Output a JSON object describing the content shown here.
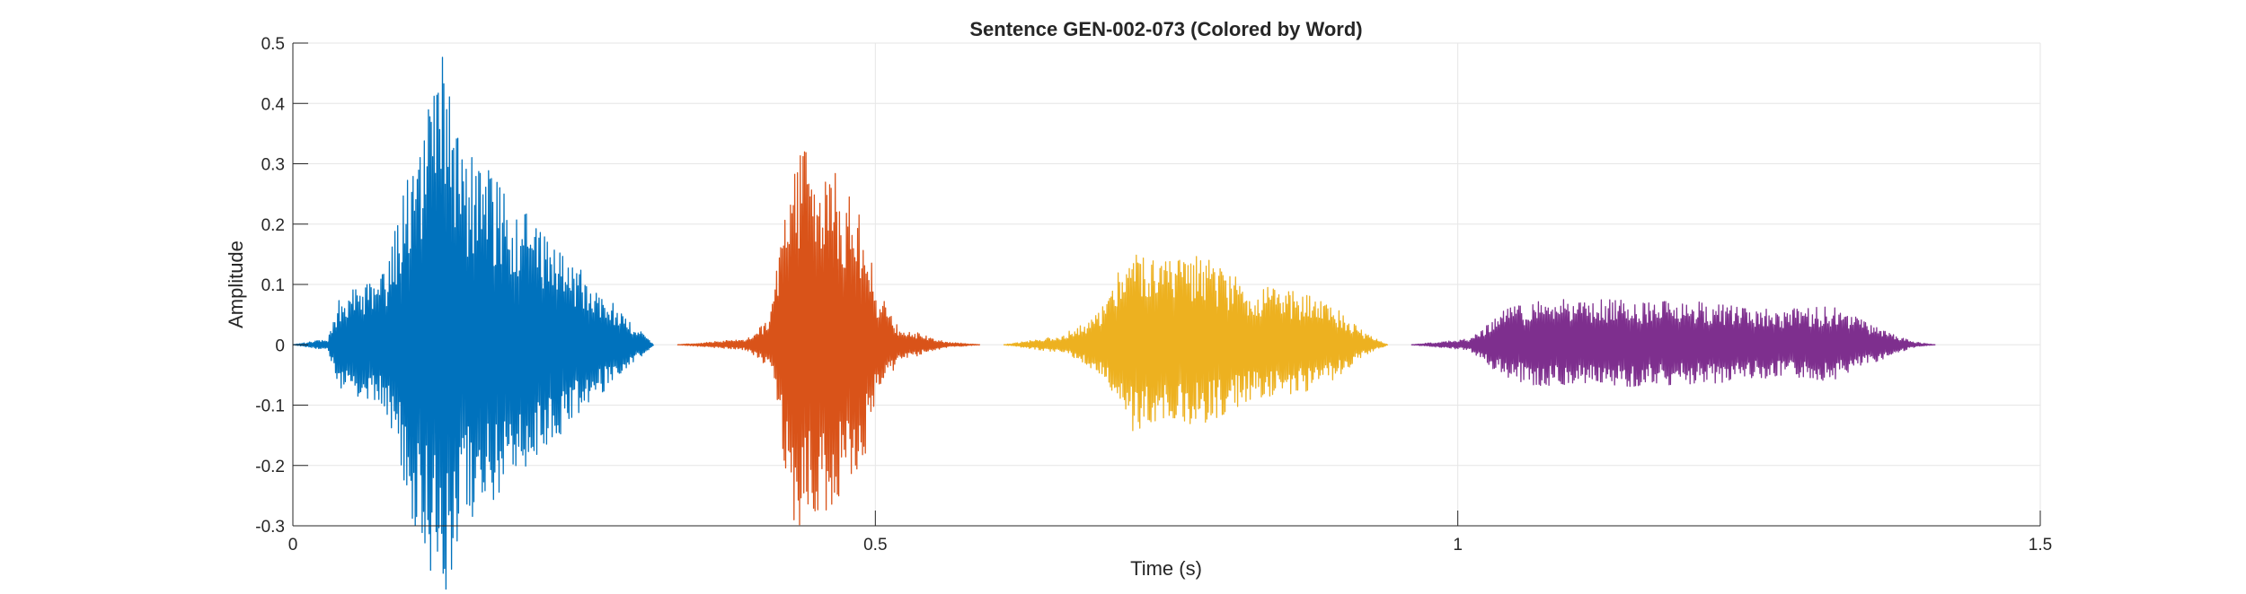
{
  "chart_data": {
    "type": "line",
    "title": "Sentence GEN-002-073 (Colored by Word)",
    "xlabel": "Time (s)",
    "ylabel": "Amplitude",
    "xlim": [
      0,
      1.5
    ],
    "ylim": [
      -0.3,
      0.5
    ],
    "xticks": [
      0,
      0.5,
      1,
      1.5
    ],
    "xtick_labels": [
      "0",
      "0.5",
      "1",
      "1.5"
    ],
    "yticks": [
      -0.3,
      -0.2,
      -0.1,
      0,
      0.1,
      0.2,
      0.3,
      0.4,
      0.5
    ],
    "ytick_labels": [
      "-0.3",
      "-0.2",
      "-0.1",
      "0",
      "0.1",
      "0.2",
      "0.3",
      "0.4",
      "0.5"
    ],
    "grid": true,
    "series": [
      {
        "color": "#0072BD",
        "t_start": 0.0,
        "t_end": 0.31,
        "envelope": [
          [
            0.0,
            0.0
          ],
          [
            0.03,
            0.01
          ],
          [
            0.04,
            0.08
          ],
          [
            0.08,
            0.12
          ],
          [
            0.1,
            0.3
          ],
          [
            0.13,
            0.49
          ],
          [
            0.15,
            0.32
          ],
          [
            0.18,
            0.27
          ],
          [
            0.2,
            0.22
          ],
          [
            0.24,
            0.14
          ],
          [
            0.28,
            0.06
          ],
          [
            0.31,
            0.0
          ]
        ]
      },
      {
        "color": "#D95319",
        "t_start": 0.33,
        "t_end": 0.59,
        "envelope": [
          [
            0.33,
            0.0
          ],
          [
            0.39,
            0.01
          ],
          [
            0.41,
            0.05
          ],
          [
            0.43,
            0.33
          ],
          [
            0.46,
            0.3
          ],
          [
            0.49,
            0.22
          ],
          [
            0.5,
            0.1
          ],
          [
            0.52,
            0.03
          ],
          [
            0.56,
            0.005
          ],
          [
            0.59,
            0.0
          ]
        ]
      },
      {
        "color": "#EDB120",
        "t_start": 0.61,
        "t_end": 0.94,
        "envelope": [
          [
            0.61,
            0.0
          ],
          [
            0.66,
            0.015
          ],
          [
            0.69,
            0.05
          ],
          [
            0.71,
            0.13
          ],
          [
            0.72,
            0.16
          ],
          [
            0.75,
            0.14
          ],
          [
            0.78,
            0.15
          ],
          [
            0.82,
            0.1
          ],
          [
            0.86,
            0.09
          ],
          [
            0.89,
            0.07
          ],
          [
            0.92,
            0.02
          ],
          [
            0.94,
            0.0
          ]
        ]
      },
      {
        "color": "#7E2F8E",
        "t_start": 0.96,
        "t_end": 1.41,
        "envelope": [
          [
            0.96,
            0.0
          ],
          [
            1.01,
            0.01
          ],
          [
            1.04,
            0.06
          ],
          [
            1.07,
            0.075
          ],
          [
            1.15,
            0.075
          ],
          [
            1.22,
            0.07
          ],
          [
            1.25,
            0.06
          ],
          [
            1.29,
            0.06
          ],
          [
            1.32,
            0.065
          ],
          [
            1.36,
            0.03
          ],
          [
            1.39,
            0.005
          ],
          [
            1.41,
            0.0
          ]
        ]
      }
    ]
  }
}
